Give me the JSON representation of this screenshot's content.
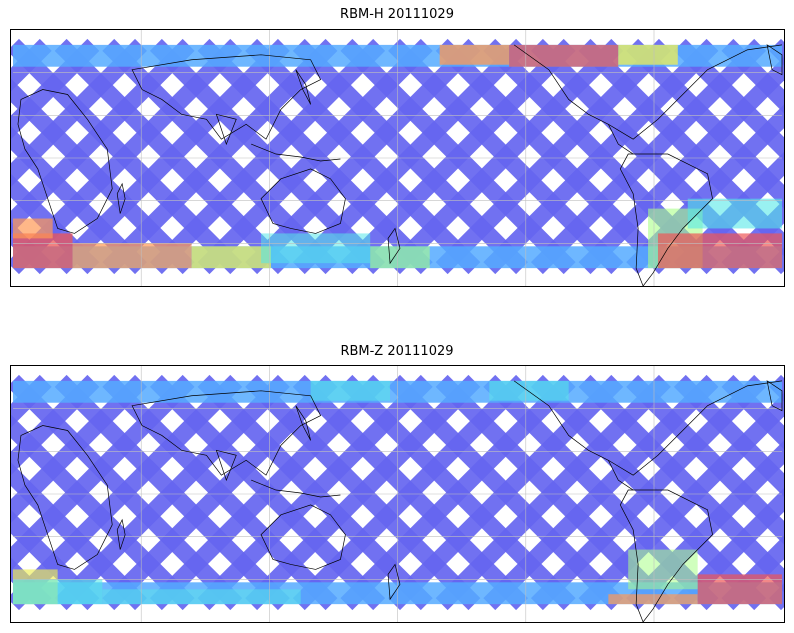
{
  "panels": [
    {
      "id": "rbm-h",
      "title": "RBM-H 20111029"
    },
    {
      "id": "rbm-z",
      "title": "RBM-Z 20111029"
    }
  ],
  "colors": {
    "track_base": "#6666f0",
    "track_mid": "#55aaff",
    "track_cyan": "#55e8e8",
    "track_green": "#aaff88",
    "track_yellow": "#eeee55",
    "track_orange": "#ff9955",
    "track_red": "#ee5555",
    "coastline": "#000000",
    "gridline": "#bfbfbf"
  },
  "map": {
    "projection": "equirectangular",
    "central_longitude": 180,
    "grid": true
  }
}
